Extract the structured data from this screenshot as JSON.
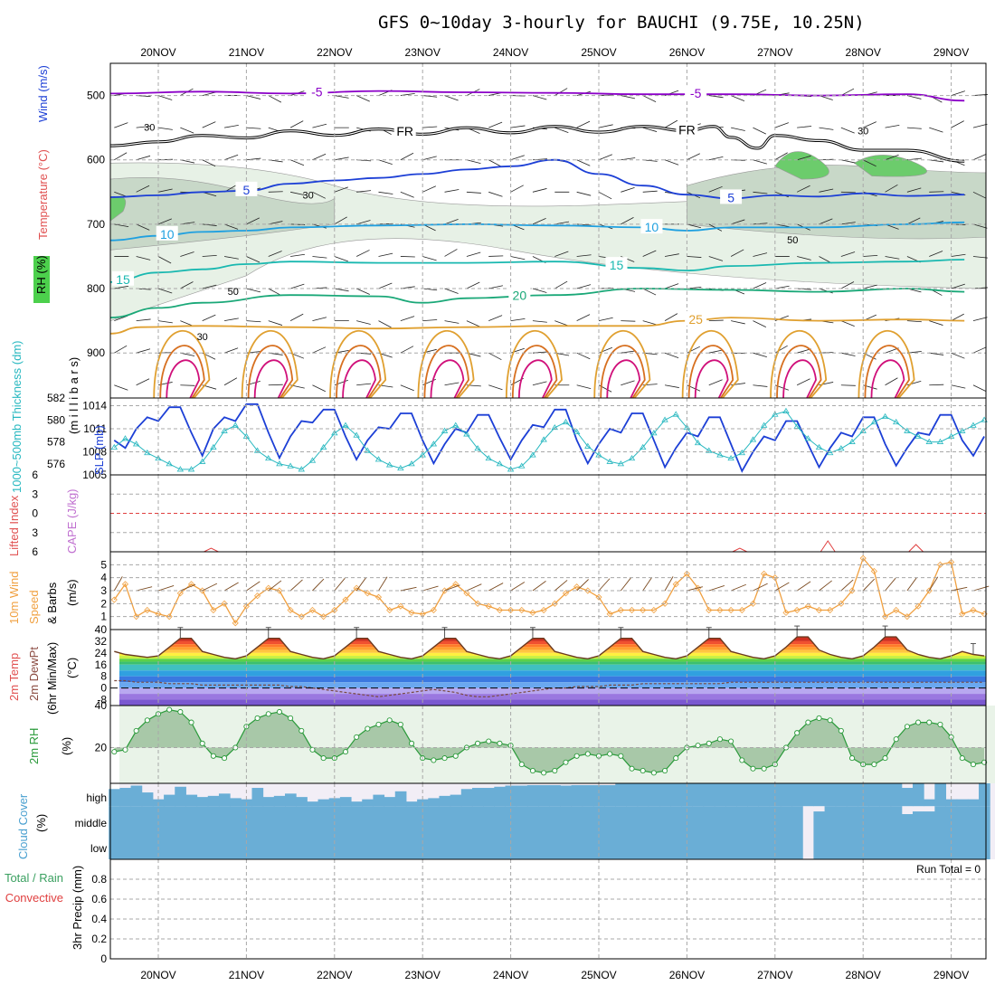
{
  "title": "GFS 0~10day 3-hourly for BAUCHI (9.75E, 10.25N)",
  "colors": {
    "purple": "#8b00c8",
    "black": "#000000",
    "blue": "#1c3fd6",
    "lblue": "#1fa0e0",
    "teal": "#19b8b0",
    "green": "#1aa878",
    "orange": "#e0a030",
    "dorange": "#d77020",
    "magenta": "#d0107a",
    "slp": "#1c3fd6",
    "thick": "#28b8c0",
    "wind10": "#f0a040",
    "rh": "#2a9a3a",
    "cloud": "#6aaed6",
    "cloudbg": "#f2eef6",
    "red": "#e04040"
  },
  "chart_data": [
    {
      "type": "line",
      "title": "GFS 0~10day 3-hourly for BAUCHI (9.75E, 10.25N)",
      "panel": "upper-air cross-section",
      "ylabel": "(m i l l i b a r s)",
      "side_labels": [
        "RH (%)",
        "Temperature (°C)",
        "Wind (m/s)"
      ],
      "yticks": [
        500,
        600,
        700,
        800,
        900
      ],
      "ylim": [
        450,
        970
      ],
      "date_labels": [
        "20NOV",
        "21NOV",
        "22NOV",
        "23NOV",
        "24NOV",
        "25NOV",
        "26NOV",
        "27NOV",
        "28NOV",
        "29NOV"
      ],
      "rh_shading_levels": [
        30,
        50,
        70,
        90
      ],
      "rh_labels": [
        "30",
        "30",
        "30",
        "50",
        "50",
        "30"
      ],
      "isotherms": [
        {
          "value": -5,
          "label": "-5",
          "color": "purple",
          "x": [
            0,
            1,
            2,
            3,
            4,
            5,
            6,
            7,
            8,
            9,
            9.65
          ],
          "p": [
            497,
            494,
            497,
            493,
            495,
            496,
            498,
            498,
            500,
            498,
            508
          ]
        },
        {
          "value": 0,
          "label": "FR",
          "color": "black",
          "x": [
            0,
            0.5,
            1,
            1.5,
            2,
            2.5,
            3,
            3.5,
            4,
            4.5,
            5,
            5.5,
            6,
            6.5,
            6.8,
            7,
            7.3,
            7.5,
            8,
            8.5,
            9,
            9.65
          ],
          "p": [
            578,
            572,
            562,
            566,
            555,
            562,
            552,
            560,
            550,
            558,
            548,
            557,
            548,
            555,
            548,
            565,
            582,
            562,
            570,
            585,
            585,
            602
          ]
        },
        {
          "value": 5,
          "label": "5",
          "color": "blue",
          "x": [
            0,
            0.5,
            1,
            1.5,
            2,
            2.5,
            3,
            3.5,
            4,
            4.5,
            5,
            5.5,
            6,
            6.5,
            7,
            7.5,
            8,
            8.5,
            9,
            9.65
          ],
          "p": [
            658,
            655,
            650,
            648,
            637,
            632,
            628,
            622,
            615,
            610,
            600,
            622,
            640,
            654,
            660,
            655,
            657,
            652,
            656,
            654
          ]
        },
        {
          "value": 10,
          "label": "10",
          "color": "lblue",
          "x": [
            0,
            0.5,
            1,
            1.5,
            2,
            3,
            4,
            5,
            6,
            6.5,
            7,
            8,
            9,
            9.65
          ],
          "p": [
            725,
            718,
            712,
            710,
            705,
            702,
            700,
            702,
            705,
            710,
            705,
            705,
            700,
            697
          ]
        },
        {
          "value": 15,
          "label": "15",
          "color": "teal",
          "x": [
            0,
            0.5,
            1,
            1.5,
            2,
            3,
            4,
            5,
            6,
            6.5,
            7,
            8,
            9,
            9.65
          ],
          "p": [
            790,
            775,
            770,
            762,
            758,
            760,
            760,
            758,
            768,
            772,
            765,
            760,
            758,
            755
          ]
        },
        {
          "value": 20,
          "label": "20",
          "color": "green",
          "x": [
            0,
            0.5,
            1,
            2,
            3,
            3.5,
            4,
            5,
            6,
            7,
            8,
            9,
            9.65
          ],
          "p": [
            845,
            830,
            822,
            810,
            812,
            822,
            815,
            810,
            800,
            802,
            805,
            800,
            805
          ]
        },
        {
          "value": 25,
          "label": "25",
          "color": "orange",
          "x": [
            0,
            0.3,
            1,
            2,
            3,
            4,
            5,
            6,
            6.5,
            7,
            8,
            9,
            9.65
          ],
          "p": [
            870,
            860,
            858,
            860,
            862,
            860,
            858,
            858,
            850,
            845,
            850,
            848,
            850
          ]
        }
      ],
      "contour_labels": [
        "-5",
        "-5",
        "FR",
        "FR",
        "5",
        "5",
        "10",
        "10",
        "15",
        "15",
        "20",
        "25"
      ],
      "diurnal_loops": {
        "color": "orange",
        "days": [
          0.3,
          1.3,
          2.3,
          3.3,
          4.3,
          5.3,
          6.3,
          7.3,
          8.3,
          9.3
        ]
      }
    },
    {
      "type": "line",
      "panel": "SLP and 1000-500mb thickness",
      "ylabel_left": "1000~500mb Thickness (dm)",
      "ylabel_right": "SLP (mb)",
      "left_ticks": [
        576,
        578,
        580,
        582
      ],
      "right_ticks": [
        1005,
        1008,
        1011,
        1014
      ],
      "series": [
        {
          "name": "SLP (mb)",
          "color": "slp",
          "ylim": [
            1005,
            1015
          ],
          "values": [
            1009.5,
            1008.5,
            1011.0,
            1012.5,
            1012.0,
            1013.8,
            1013.8,
            1010.5,
            1007.5,
            1011.0,
            1012.5,
            1012.0,
            1014.2,
            1014.2,
            1010.5,
            1007.2,
            1010.0,
            1012.0,
            1011.8,
            1013.5,
            1013.5,
            1010.0,
            1007.0,
            1009.5,
            1011.2,
            1011.0,
            1013.0,
            1013.0,
            1009.5,
            1006.5,
            1009.0,
            1011.0,
            1010.5,
            1012.8,
            1012.8,
            1009.8,
            1007.0,
            1009.5,
            1011.5,
            1011.2,
            1013.5,
            1013.5,
            1009.5,
            1006.5,
            1009.0,
            1011.0,
            1010.5,
            1013.0,
            1013.0,
            1009.5,
            1006.0,
            1008.5,
            1010.5,
            1010.0,
            1012.5,
            1012.5,
            1009.0,
            1005.5,
            1008.0,
            1010.0,
            1009.5,
            1012.0,
            1012.0,
            1009.0,
            1006.0,
            1008.5,
            1010.5,
            1010.0,
            1012.5,
            1012.5,
            1009.0,
            1006.2,
            1008.5,
            1010.5,
            1010.2,
            1012.8,
            1012.8,
            1009.5,
            1007.5,
            1010.0
          ]
        },
        {
          "name": "Thickness (dm)",
          "color": "thick",
          "ylim": [
            575,
            582
          ],
          "values": [
            577.5,
            578.3,
            577.8,
            577.0,
            576.5,
            576.0,
            575.5,
            575.5,
            576.2,
            577.5,
            579.0,
            579.5,
            578.5,
            577.2,
            576.5,
            576.0,
            575.8,
            575.5,
            576.3,
            577.5,
            578.8,
            579.5,
            578.6,
            577.2,
            576.4,
            575.9,
            575.6,
            576.0,
            576.8,
            577.8,
            579.0,
            579.5,
            578.7,
            577.4,
            576.5,
            576.0,
            575.5,
            575.8,
            576.8,
            578.2,
            579.3,
            579.8,
            578.9,
            577.6,
            576.8,
            576.2,
            576.0,
            576.5,
            577.5,
            578.8,
            580.0,
            580.5,
            579.3,
            577.9,
            577.2,
            576.8,
            576.5,
            577.0,
            578.2,
            579.5,
            580.5,
            580.8,
            579.4,
            578.3,
            577.5,
            577.0,
            577.4,
            578.0,
            579.0,
            579.8,
            580.3,
            579.8,
            579.0,
            578.5,
            578.0,
            578.0,
            578.5,
            579.0,
            579.5,
            580.0
          ]
        }
      ]
    },
    {
      "type": "line",
      "panel": "Lifted Index and CAPE",
      "ylabel_left": "Lifted Index",
      "ylabel_right": "CAPE (J/kg)",
      "yticks": [
        -6,
        -3,
        0,
        3,
        6
      ],
      "ytick_labels": [
        "6",
        "3",
        "0",
        "3",
        "6"
      ],
      "ylim": [
        -6,
        6
      ],
      "cape_spikes": [
        {
          "x": 0.6,
          "v": 1
        },
        {
          "x": 6.6,
          "v": 1
        },
        {
          "x": 7.6,
          "v": 3
        },
        {
          "x": 8.6,
          "v": 2
        }
      ]
    },
    {
      "type": "line",
      "panel": "10m Wind Speed & Barbs",
      "ylabel": "10m Wind Speed & Barbs (m/s)",
      "ylim": [
        0,
        6
      ],
      "yticks": [
        1,
        2,
        3,
        4,
        5
      ],
      "values": [
        2.3,
        3.5,
        1.0,
        1.5,
        1.2,
        1.0,
        2.8,
        3.5,
        3.0,
        1.5,
        2.0,
        0.5,
        1.8,
        2.6,
        3.2,
        3.0,
        1.5,
        1.0,
        1.5,
        1.0,
        1.5,
        2.3,
        3.2,
        2.8,
        2.5,
        1.5,
        1.8,
        1.3,
        1.2,
        1.5,
        3.0,
        3.5,
        2.8,
        2.0,
        1.8,
        1.5,
        1.5,
        1.5,
        1.3,
        1.5,
        2.0,
        2.8,
        3.3,
        3.0,
        2.5,
        1.2,
        1.5,
        1.5,
        1.5,
        1.5,
        2.0,
        3.5,
        4.3,
        3.2,
        1.5,
        1.5,
        1.5,
        1.5,
        2.0,
        4.3,
        4.0,
        1.3,
        1.5,
        1.8,
        1.5,
        1.5,
        2.0,
        3.0,
        5.5,
        4.5,
        1.0,
        1.5,
        1.0,
        1.8,
        3.0,
        5.0,
        5.2,
        1.2,
        1.5,
        1.2
      ],
      "barb_color": "#7a4a20"
    },
    {
      "type": "area",
      "panel": "2m Temp and DewPt",
      "ylabel": "2m Temp 2m DewPt (6hr Min/Max) (°C)",
      "yticks": [
        -8,
        0,
        8,
        16,
        24,
        32,
        40
      ],
      "ytick_labels": [
        "-8",
        "0",
        "8",
        "16",
        "24",
        "32",
        "40"
      ],
      "ylim": [
        -12,
        40
      ],
      "temp": [
        25,
        23,
        22,
        21,
        22,
        28,
        34,
        34,
        25,
        23,
        21,
        20,
        22,
        28,
        34,
        34,
        25,
        23,
        21,
        20,
        22,
        28,
        34,
        34,
        25,
        23,
        21,
        20,
        22,
        28,
        34,
        34,
        25,
        23,
        21,
        20,
        22,
        28,
        34,
        34,
        25,
        23,
        21,
        20,
        22,
        28,
        34,
        34,
        25,
        23,
        21,
        20,
        22,
        28,
        34,
        34,
        25,
        23,
        21,
        20,
        22,
        28,
        35,
        35,
        26,
        23,
        21,
        20,
        22,
        28,
        35,
        35,
        26,
        23,
        21,
        20,
        22,
        25,
        23,
        22
      ],
      "dewpt": [
        5,
        5,
        4,
        4,
        4,
        3,
        3,
        3,
        2,
        2,
        2,
        2,
        2,
        2,
        2,
        2,
        1,
        1,
        0,
        -1,
        -2,
        -3,
        -4,
        -5,
        -6,
        -5,
        -4,
        -3,
        -2,
        -1,
        -2,
        -3,
        -5,
        -6,
        -6,
        -5,
        -4,
        -3,
        -2,
        -1,
        0,
        0,
        1,
        1,
        1,
        2,
        2,
        2,
        3,
        3,
        3,
        3,
        3,
        3,
        3,
        3,
        4,
        4,
        4,
        4,
        4,
        4,
        4,
        4,
        4,
        4,
        4,
        4,
        4,
        4,
        4,
        4,
        4,
        4,
        4,
        4,
        4,
        4,
        4,
        4
      ],
      "bands": [
        {
          "from": 32,
          "to": 40,
          "color": "#d03020"
        },
        {
          "from": 30,
          "to": 32,
          "color": "#f05030"
        },
        {
          "from": 28,
          "to": 30,
          "color": "#ff7a2a"
        },
        {
          "from": 26,
          "to": 28,
          "color": "#ffa030"
        },
        {
          "from": 24,
          "to": 26,
          "color": "#ffc640"
        },
        {
          "from": 22,
          "to": 24,
          "color": "#fff040"
        },
        {
          "from": 20,
          "to": 22,
          "color": "#c8f040"
        },
        {
          "from": 18,
          "to": 20,
          "color": "#5cd04a"
        },
        {
          "from": 16,
          "to": 18,
          "color": "#3cc070"
        },
        {
          "from": 12,
          "to": 16,
          "color": "#40c0c0"
        },
        {
          "from": 8,
          "to": 12,
          "color": "#30a0e0"
        },
        {
          "from": 4,
          "to": 8,
          "color": "#3a78e0"
        },
        {
          "from": 0,
          "to": 4,
          "color": "#6aa8f0"
        },
        {
          "from": -4,
          "to": 0,
          "color": "#b8a8f0"
        },
        {
          "from": -8,
          "to": -4,
          "color": "#9a78e0"
        },
        {
          "from": -12,
          "to": -8,
          "color": "#7a58d0"
        }
      ]
    },
    {
      "type": "area",
      "panel": "2m RH",
      "ylabel": "2m RH (%)",
      "yticks": [
        20,
        40
      ],
      "ylim": [
        3,
        40
      ],
      "values": [
        18,
        19,
        28,
        33,
        36,
        38,
        37,
        32,
        22,
        16,
        15,
        20,
        30,
        34,
        36,
        37,
        34,
        28,
        19,
        15,
        15,
        18,
        25,
        29,
        31,
        33,
        31,
        22,
        15,
        14,
        15,
        16,
        20,
        22,
        23,
        22,
        21,
        12,
        9,
        8,
        9,
        13,
        16,
        17,
        16,
        17,
        16,
        10,
        9,
        8,
        9,
        15,
        20,
        21,
        22,
        24,
        23,
        14,
        10,
        10,
        12,
        20,
        27,
        32,
        34,
        33,
        28,
        15,
        12,
        12,
        15,
        24,
        30,
        32,
        32,
        31,
        25,
        15,
        12,
        13
      ],
      "x_end": 9.65
    },
    {
      "type": "area",
      "panel": "Cloud Cover",
      "ylabel": "Cloud Cover (%)",
      "levels": [
        "high",
        "middle",
        "low"
      ],
      "high": [
        75,
        80,
        90,
        60,
        30,
        50,
        85,
        50,
        40,
        45,
        55,
        35,
        30,
        80,
        40,
        45,
        55,
        40,
        20,
        30,
        35,
        40,
        20,
        30,
        50,
        40,
        65,
        20,
        30,
        35,
        45,
        50,
        75,
        80,
        80,
        85,
        90,
        90,
        92,
        92,
        92,
        90,
        92,
        92,
        92,
        92,
        100,
        100,
        100,
        100,
        100,
        100,
        100,
        100,
        100,
        100,
        100,
        100,
        100,
        100,
        100,
        100,
        100,
        100,
        100,
        100,
        100,
        100,
        100,
        100,
        100,
        100,
        80,
        100,
        30,
        100,
        30,
        30,
        30,
        100
      ],
      "middle": [
        100,
        100,
        100,
        100,
        100,
        100,
        100,
        100,
        100,
        100,
        100,
        100,
        100,
        100,
        100,
        100,
        100,
        100,
        100,
        100,
        100,
        100,
        100,
        100,
        100,
        100,
        100,
        100,
        100,
        100,
        100,
        100,
        100,
        100,
        100,
        100,
        100,
        100,
        100,
        100,
        100,
        100,
        100,
        100,
        100,
        100,
        100,
        100,
        100,
        100,
        100,
        100,
        100,
        100,
        100,
        100,
        100,
        100,
        100,
        100,
        100,
        100,
        100,
        0,
        90,
        100,
        100,
        100,
        100,
        100,
        100,
        100,
        85,
        90,
        90,
        100,
        100,
        100,
        100,
        100
      ],
      "x_end": 9.65
    },
    {
      "type": "bar",
      "panel": "3hr Precip",
      "ylabel": "3hr Precip (mm)",
      "left_labels": [
        "Total / Rain",
        "Convective"
      ],
      "yticks": [
        0,
        0.2,
        0.4,
        0.6,
        0.8
      ],
      "ytick_labels": [
        "0",
        "0.2",
        "0.4",
        "0.6",
        "0.8"
      ],
      "ylim": [
        0,
        1.0
      ],
      "values": [],
      "run_total": "Run Total = 0"
    }
  ]
}
